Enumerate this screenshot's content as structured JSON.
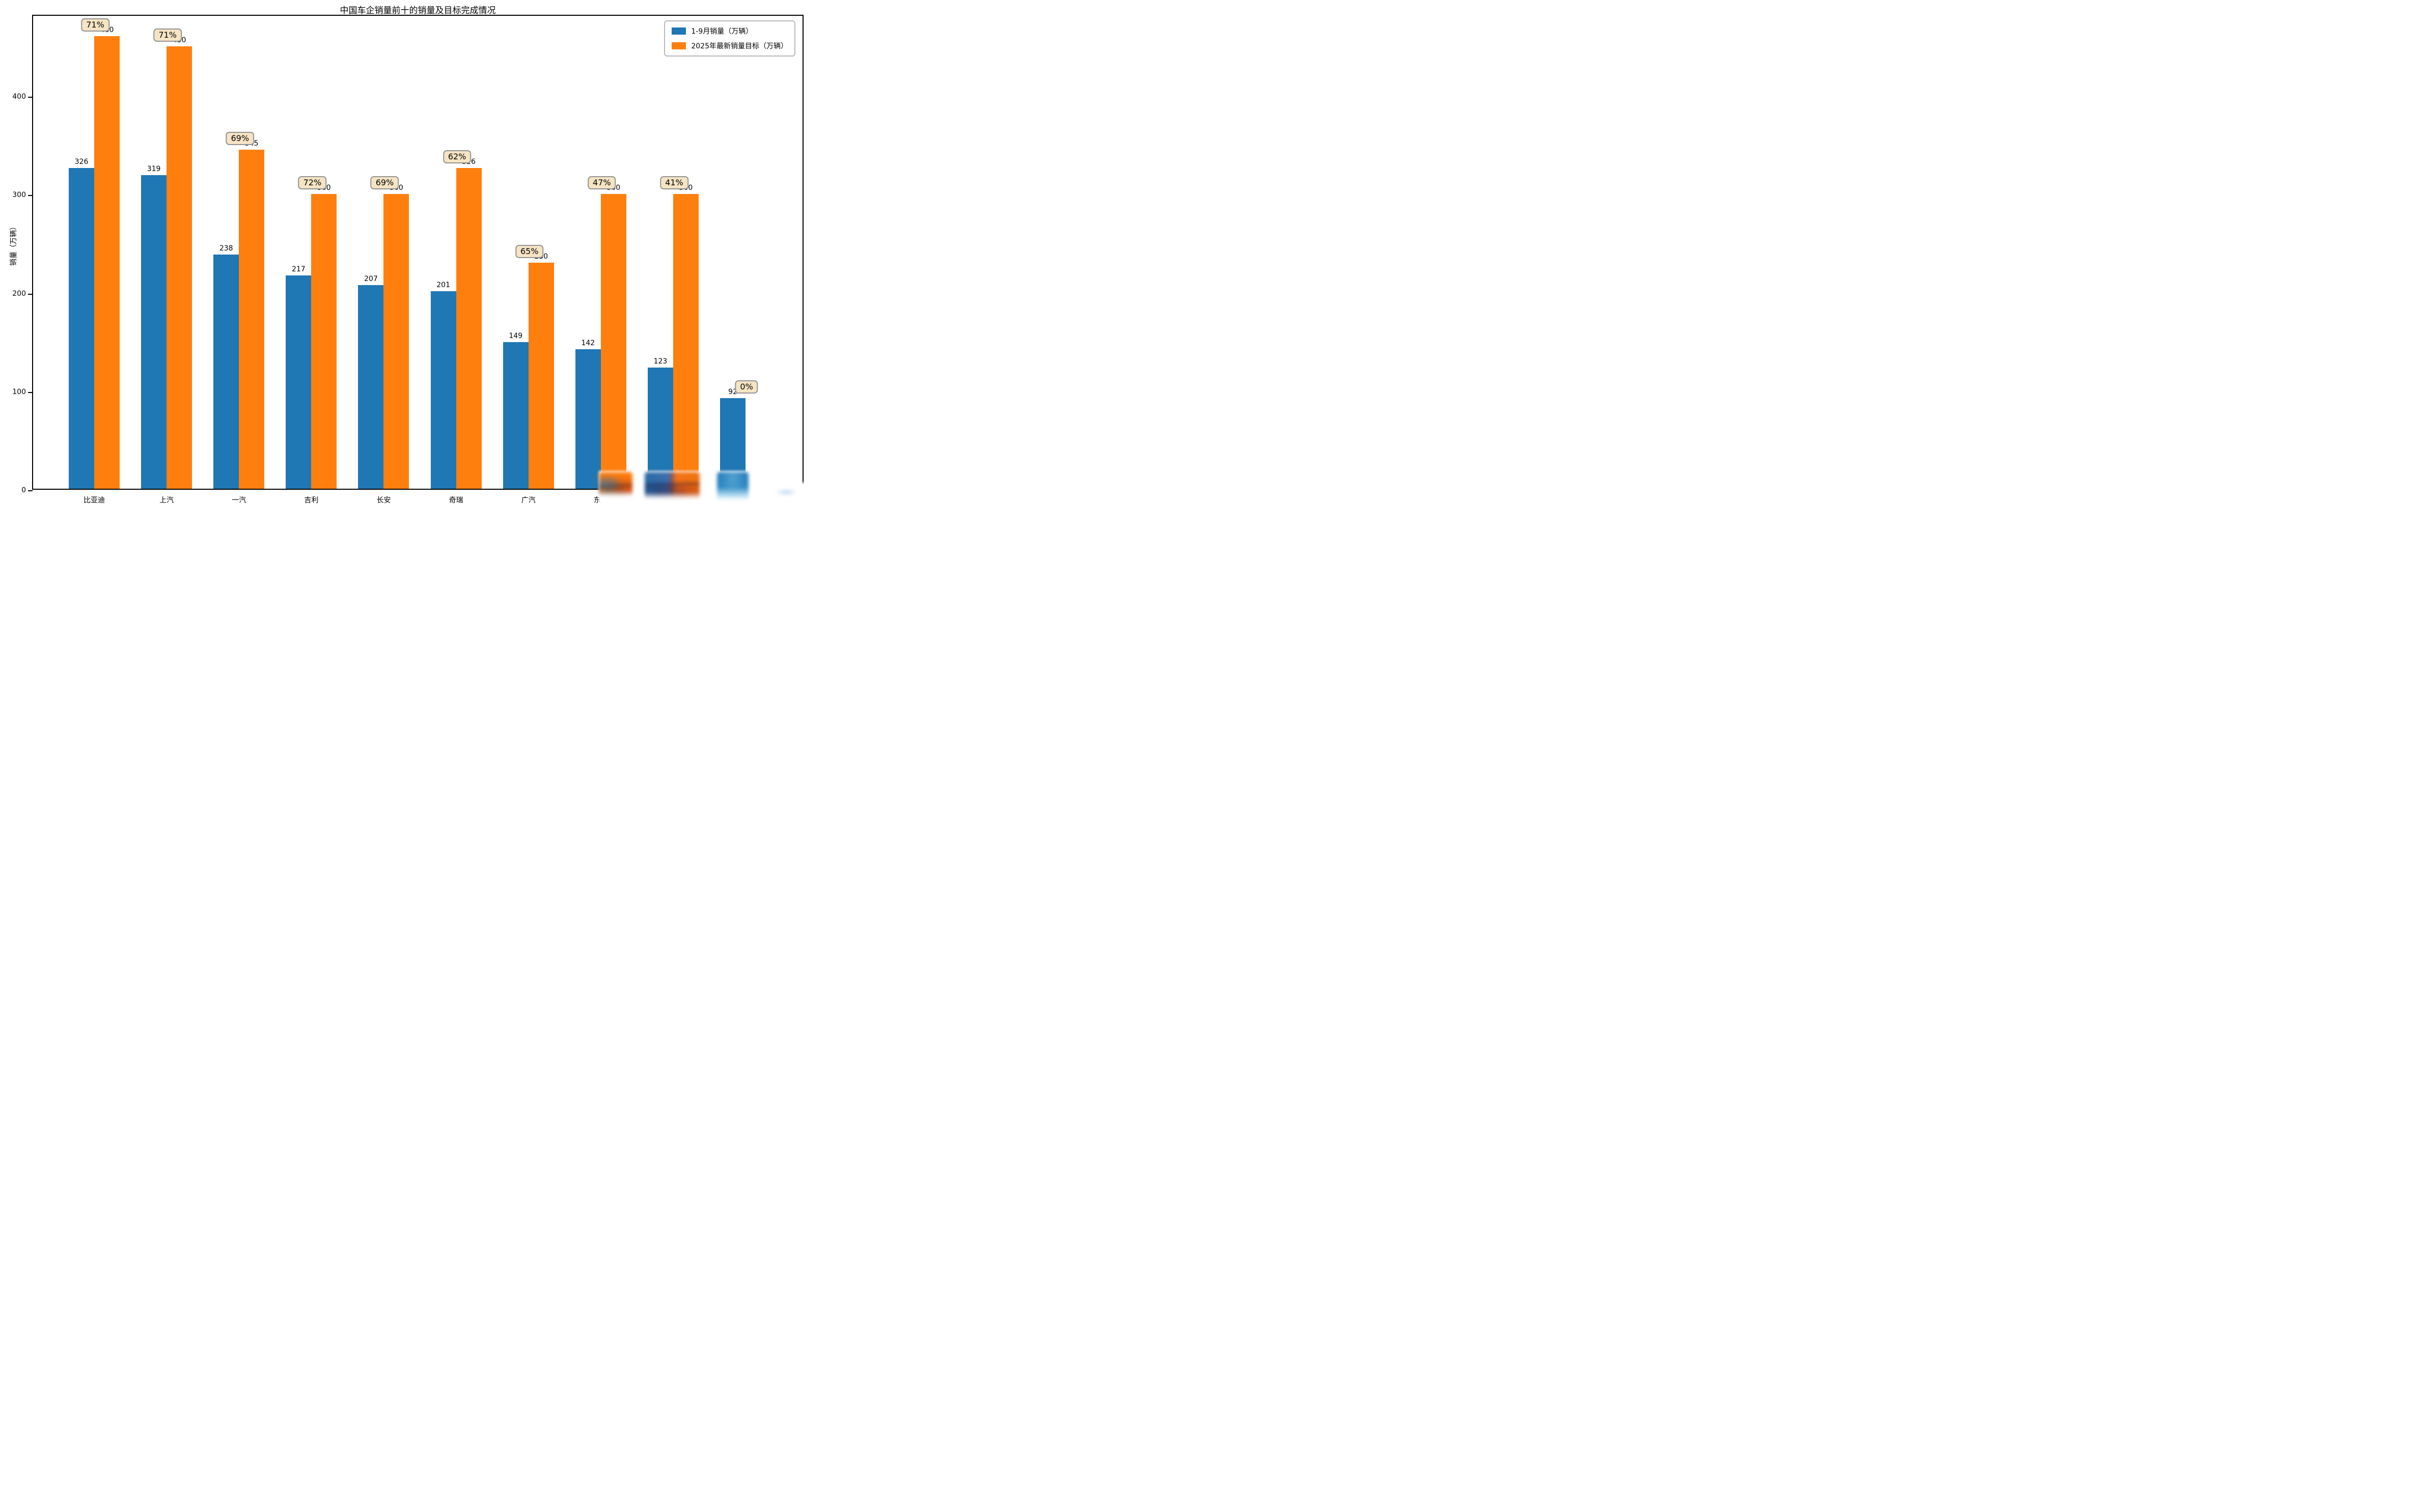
{
  "chart_data": {
    "type": "bar",
    "title": "中国车企销量前十的销量及目标完成情况",
    "ylabel": "销量（万辆）",
    "xlabel": "",
    "categories": [
      "比亚迪",
      "上汽",
      "一汽",
      "吉利",
      "长安",
      "奇瑞",
      "广汽",
      "东风",
      "",
      ""
    ],
    "xlabel_visibility": [
      "full",
      "full",
      "full",
      "full",
      "full",
      "full",
      "full",
      "partial",
      "hidden",
      "hidden"
    ],
    "series": [
      {
        "name": "1-9月销量（万辆）",
        "color": "#1f77b4",
        "values": [
          326,
          319,
          238,
          217,
          207,
          201,
          149,
          142,
          123,
          92
        ]
      },
      {
        "name": "2025年最新销量目标（万辆）",
        "color": "#ff7f0e",
        "values": [
          460,
          450,
          345,
          300,
          300,
          326,
          230,
          300,
          300,
          null
        ]
      }
    ],
    "completion_badges": [
      "71%",
      "71%",
      "69%",
      "72%",
      "69%",
      "62%",
      "65%",
      "47%",
      "41%",
      "0%"
    ],
    "yticks": [
      0,
      100,
      200,
      300,
      400
    ],
    "ylim": [
      0,
      483
    ],
    "grid": false,
    "legend_position": "upper right",
    "badge_style": {
      "bg": "#f5e4c3",
      "border": "#939393",
      "text": "#000000"
    },
    "blur_patches": {
      "note": "multicolor blur smudges obscure the bottoms of the last three bar groups, the axis line and the last x labels",
      "over_groups": [
        8,
        9,
        10
      ]
    }
  }
}
